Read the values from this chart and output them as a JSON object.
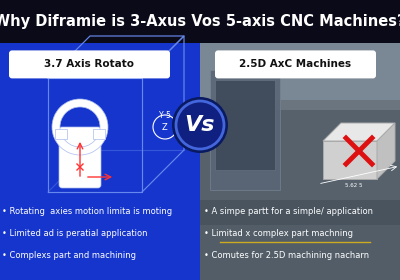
{
  "title": "Why Diframie is 3-Axus Vos 5-axis CNC Machines?",
  "title_color": "#ffffff",
  "title_bg": "#0a0a18",
  "title_fontsize": 10.5,
  "left_label": "3.7 Axis Rotato",
  "right_label": "2.5D AxC Machines",
  "left_bg": "#1535cc",
  "vs_text": "Vs",
  "vs_color": "#ffffff",
  "left_bullets": [
    "Rotating  axies motion limita is moting",
    "Limited ad is peratial application",
    "Complexs part and machining"
  ],
  "right_bullets": [
    "A simpe partt for a simple/ application",
    "Limitad x complex part machning",
    "Comutes for 2.5D machining nacharn"
  ],
  "bullet_color": "#ffffff",
  "bullet_fontsize": 6.0,
  "label_bg": "#ffffff",
  "label_text_color": "#111111",
  "label_fontsize": 7.5,
  "cross_color": "#dd1111",
  "title_bar_height": 0.155
}
